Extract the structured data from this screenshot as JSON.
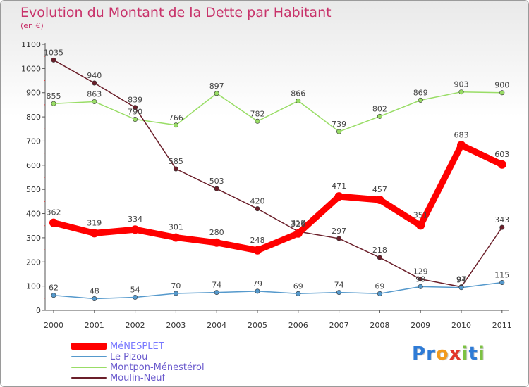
{
  "chart_data": {
    "type": "line",
    "title": "Evolution du Montant de la Dette par Habitant",
    "subtitle": "(en €)",
    "xlabel": "",
    "ylabel": "",
    "categories": [
      "2000",
      "2001",
      "2002",
      "2003",
      "2004",
      "2005",
      "2006",
      "2007",
      "2008",
      "2009",
      "2010",
      "2011"
    ],
    "ylim": [
      0,
      1100
    ],
    "yticks": [
      0,
      100,
      200,
      300,
      400,
      500,
      600,
      700,
      800,
      900,
      1000,
      1100
    ],
    "grid": false,
    "legend_position": "bottom-left",
    "series": [
      {
        "name": "MéNESPLET",
        "color": "#ff0000",
        "values": [
          362,
          319,
          334,
          301,
          280,
          248,
          318,
          471,
          457,
          351,
          683,
          603
        ]
      },
      {
        "name": "Le Pizou",
        "color": "#5599cc",
        "values": [
          62,
          48,
          54,
          70,
          74,
          79,
          69,
          74,
          69,
          98,
          94,
          115
        ]
      },
      {
        "name": "Montpon-Ménestérol",
        "color": "#99dd66",
        "values": [
          855,
          863,
          790,
          766,
          897,
          782,
          866,
          739,
          802,
          869,
          903,
          900
        ]
      },
      {
        "name": "Moulin-Neuf",
        "color": "#6b1f2a",
        "values": [
          1035,
          940,
          839,
          585,
          503,
          420,
          326,
          297,
          218,
          129,
          97,
          343
        ]
      }
    ]
  },
  "logo": {
    "letters": [
      "P",
      "r",
      "o",
      "x",
      "i",
      "t",
      "i"
    ],
    "colors": [
      "#2e7bd6",
      "#2e7bd6",
      "#f29a1c",
      "#e2342a",
      "#7cc242",
      "#2e7bd6",
      "#7cc242"
    ]
  }
}
